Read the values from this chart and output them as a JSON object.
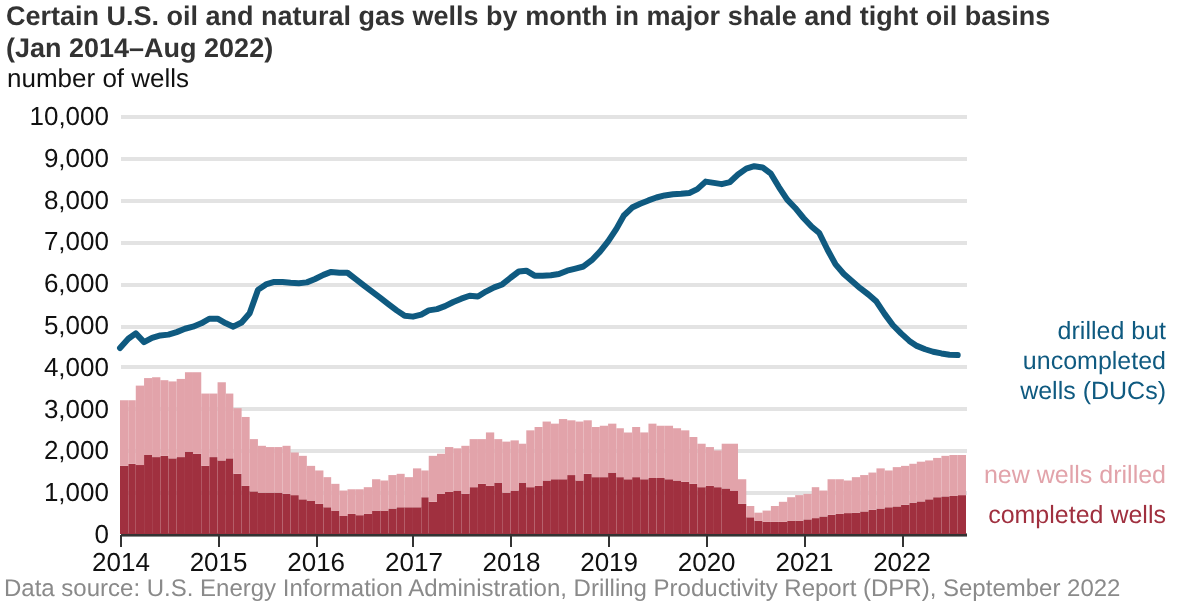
{
  "chart_data": {
    "type": "bar",
    "stacked": true,
    "title": "Certain U.S. oil and natural gas wells by month in major shale and tight oil basins (Jan 2014–Aug 2022)",
    "ylabel": "number of wells",
    "annotations": [
      "Data source: U.S. Energy Information Administration, Drilling Productivity Report (DPR), September 2022"
    ],
    "x": [
      "2014-01",
      "2014-02",
      "2014-03",
      "2014-04",
      "2014-05",
      "2014-06",
      "2014-07",
      "2014-08",
      "2014-09",
      "2014-10",
      "2014-11",
      "2014-12",
      "2015-01",
      "2015-02",
      "2015-03",
      "2015-04",
      "2015-05",
      "2015-06",
      "2015-07",
      "2015-08",
      "2015-09",
      "2015-10",
      "2015-11",
      "2015-12",
      "2016-01",
      "2016-02",
      "2016-03",
      "2016-04",
      "2016-05",
      "2016-06",
      "2016-07",
      "2016-08",
      "2016-09",
      "2016-10",
      "2016-11",
      "2016-12",
      "2017-01",
      "2017-02",
      "2017-03",
      "2017-04",
      "2017-05",
      "2017-06",
      "2017-07",
      "2017-08",
      "2017-09",
      "2017-10",
      "2017-11",
      "2017-12",
      "2018-01",
      "2018-02",
      "2018-03",
      "2018-04",
      "2018-05",
      "2018-06",
      "2018-07",
      "2018-08",
      "2018-09",
      "2018-10",
      "2018-11",
      "2018-12",
      "2019-01",
      "2019-02",
      "2019-03",
      "2019-04",
      "2019-05",
      "2019-06",
      "2019-07",
      "2019-08",
      "2019-09",
      "2019-10",
      "2019-11",
      "2019-12",
      "2020-01",
      "2020-02",
      "2020-03",
      "2020-04",
      "2020-05",
      "2020-06",
      "2020-07",
      "2020-08",
      "2020-09",
      "2020-10",
      "2020-11",
      "2020-12",
      "2021-01",
      "2021-02",
      "2021-03",
      "2021-04",
      "2021-05",
      "2021-06",
      "2021-07",
      "2021-08",
      "2021-09",
      "2021-10",
      "2021-11",
      "2021-12",
      "2022-01",
      "2022-02",
      "2022-03",
      "2022-04",
      "2022-05",
      "2022-06",
      "2022-07",
      "2022-08"
    ],
    "series": [
      {
        "name": "drilled but uncompleted wells (DUCs)",
        "type": "line",
        "color": "#0f5a80",
        "values": [
          4450,
          4670,
          4800,
          4590,
          4690,
          4750,
          4770,
          4830,
          4910,
          4960,
          5040,
          5150,
          5150,
          5040,
          4960,
          5060,
          5280,
          5840,
          5970,
          6030,
          6030,
          6010,
          6000,
          6020,
          6100,
          6200,
          6270,
          6250,
          6250,
          6100,
          5950,
          5800,
          5650,
          5500,
          5350,
          5220,
          5200,
          5250,
          5350,
          5380,
          5450,
          5550,
          5630,
          5700,
          5680,
          5800,
          5900,
          5970,
          6130,
          6280,
          6300,
          6180,
          6180,
          6190,
          6220,
          6300,
          6350,
          6400,
          6550,
          6750,
          7000,
          7300,
          7620,
          7810,
          7900,
          7980,
          8050,
          8100,
          8130,
          8140,
          8160,
          8250,
          8430,
          8400,
          8370,
          8420,
          8600,
          8740,
          8800,
          8770,
          8620,
          8300,
          8000,
          7800,
          7560,
          7350,
          7200,
          6800,
          6450,
          6220,
          6050,
          5880,
          5730,
          5560,
          5260,
          5000,
          4800,
          4620,
          4500,
          4420,
          4360,
          4320,
          4290,
          4280
        ]
      },
      {
        "name": "completed wells",
        "color": "#a0303f",
        "values": [
          1630,
          1680,
          1650,
          1890,
          1840,
          1870,
          1810,
          1840,
          1970,
          1920,
          1630,
          1840,
          1760,
          1810,
          1440,
          1150,
          1020,
          990,
          990,
          990,
          960,
          930,
          830,
          800,
          720,
          640,
          560,
          430,
          480,
          450,
          480,
          560,
          560,
          610,
          640,
          640,
          640,
          880,
          770,
          960,
          1010,
          1040,
          960,
          1120,
          1200,
          1150,
          1230,
          990,
          1040,
          1230,
          1120,
          1150,
          1280,
          1310,
          1310,
          1410,
          1280,
          1440,
          1360,
          1360,
          1470,
          1360,
          1310,
          1360,
          1310,
          1340,
          1340,
          1310,
          1280,
          1250,
          1200,
          1120,
          1150,
          1120,
          1090,
          1040,
          720,
          400,
          320,
          290,
          290,
          290,
          320,
          320,
          350,
          380,
          420,
          460,
          480,
          500,
          510,
          540,
          580,
          610,
          640,
          660,
          700,
          750,
          780,
          830,
          880,
          900,
          910,
          930
        ]
      },
      {
        "name": "new wells drilled",
        "color": "#e2a3aa",
        "values": [
          1570,
          1520,
          1900,
          1840,
          1910,
          1810,
          1840,
          1870,
          1900,
          1950,
          1730,
          1520,
          1870,
          1550,
          1570,
          1650,
          1250,
          1120,
          1090,
          1090,
          1150,
          1020,
          1040,
          830,
          800,
          720,
          640,
          610,
          590,
          620,
          640,
          750,
          720,
          800,
          800,
          720,
          930,
          640,
          1100,
          960,
          1070,
          1010,
          1150,
          1150,
          1070,
          1280,
          1040,
          1220,
          1200,
          930,
          1360,
          1410,
          1410,
          1330,
          1440,
          1310,
          1410,
          1280,
          1200,
          1230,
          1170,
          1170,
          1120,
          1200,
          1120,
          1300,
          1250,
          1280,
          1250,
          1230,
          1120,
          1040,
          930,
          880,
          1070,
          1120,
          590,
          270,
          190,
          270,
          380,
          480,
          560,
          610,
          610,
          740,
          620,
          850,
          830,
          780,
          850,
          870,
          890,
          960,
          880,
          940,
          930,
          930,
          950,
          930,
          940,
          970,
          980,
          960
        ]
      }
    ],
    "xlim": [
      "2014-01",
      "2022-09"
    ],
    "xticks": [
      "2014",
      "2015",
      "2016",
      "2017",
      "2018",
      "2019",
      "2020",
      "2021",
      "2022"
    ],
    "ylim": [
      0,
      10000
    ],
    "yticks": [
      0,
      {
        "value": 1000,
        "label": "1,000"
      },
      {
        "value": 2000,
        "label": "2,000"
      },
      {
        "value": 3000,
        "label": "3,000"
      },
      {
        "value": 4000,
        "label": "4,000"
      },
      {
        "value": 5000,
        "label": "5,000"
      },
      {
        "value": 6000,
        "label": "6,000"
      },
      {
        "value": 7000,
        "label": "7,000"
      },
      {
        "value": 8000,
        "label": "8,000"
      },
      {
        "value": 9000,
        "label": "9,000"
      },
      {
        "value": 10000,
        "label": "10,000"
      }
    ],
    "grid": "y",
    "legend": false
  }
}
